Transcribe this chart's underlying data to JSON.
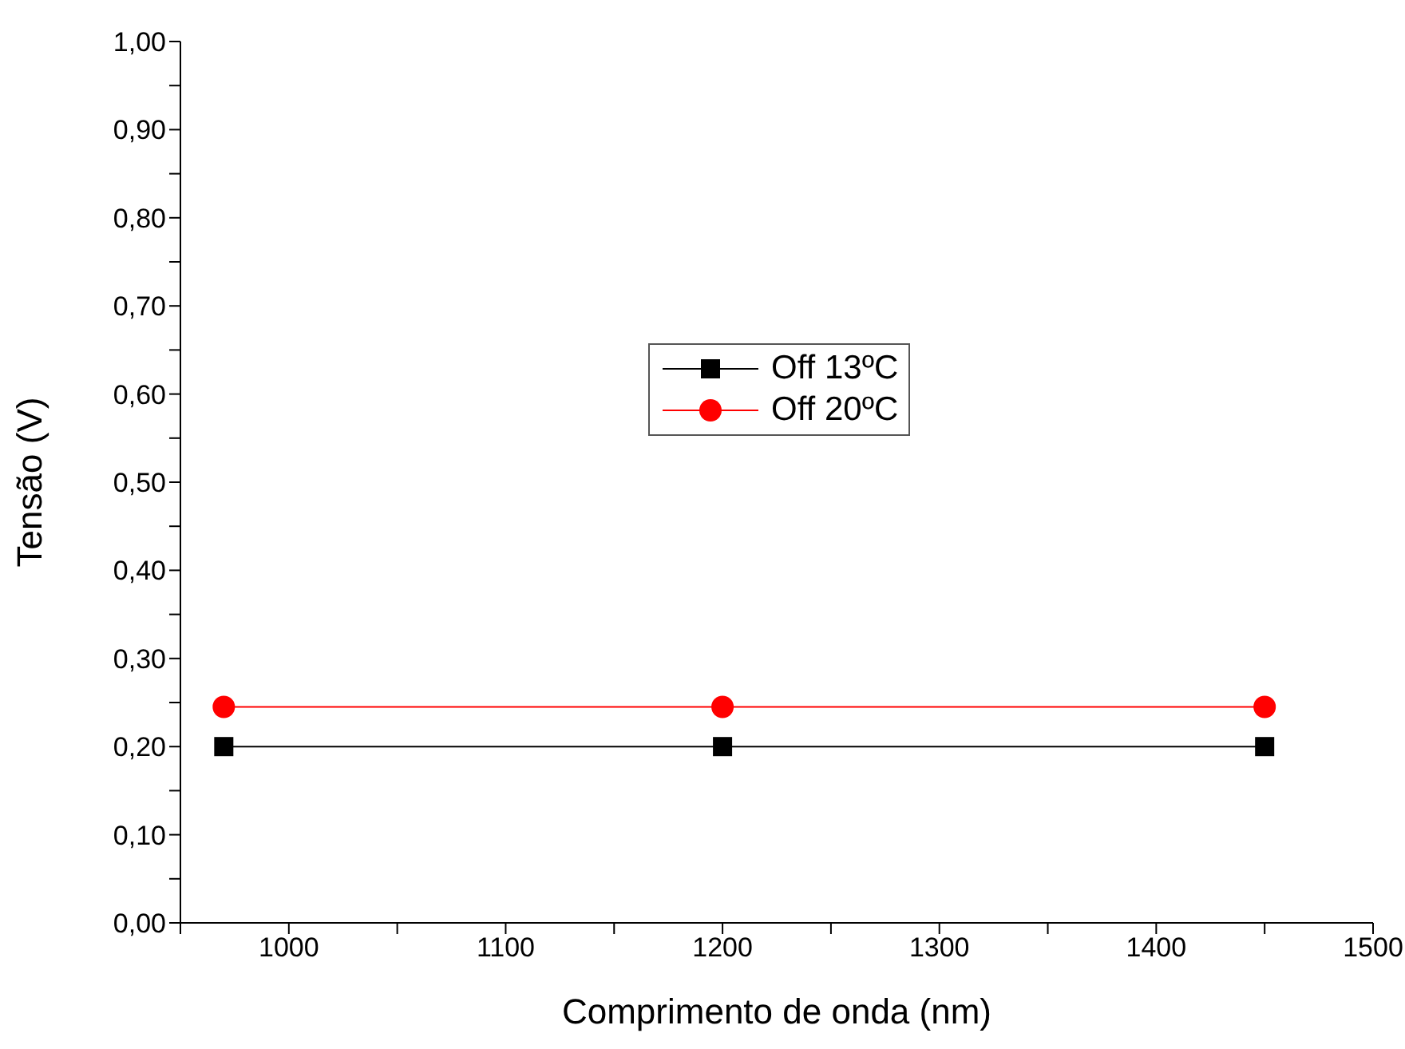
{
  "chart_data": {
    "type": "line",
    "xlabel": "Comprimento de onda (nm)",
    "ylabel": "Tensão (V)",
    "x": [
      970,
      1200,
      1450
    ],
    "series": [
      {
        "name": "Off 13ºC",
        "color": "#000000",
        "marker": "square",
        "values": [
          0.2,
          0.2,
          0.2
        ]
      },
      {
        "name": "Off 20ºC",
        "color": "#ff0000",
        "marker": "circle",
        "values": [
          0.245,
          0.245,
          0.245
        ]
      }
    ],
    "xlim": [
      950,
      1500
    ],
    "xticks": [
      {
        "value": 950,
        "label": null
      },
      1000,
      {
        "value": 1050,
        "label": null
      },
      1100,
      {
        "value": 1150,
        "label": null
      },
      1200,
      {
        "value": 1250,
        "label": null
      },
      1300,
      {
        "value": 1350,
        "label": null
      },
      1400,
      {
        "value": 1450,
        "label": null
      },
      1500
    ],
    "ylim": [
      0,
      1
    ],
    "yticks": [
      {
        "value": 0,
        "label": "0,00"
      },
      {
        "value": 0.05,
        "label": null
      },
      {
        "value": 0.1,
        "label": "0,10"
      },
      {
        "value": 0.15,
        "label": null
      },
      {
        "value": 0.2,
        "label": "0,20"
      },
      {
        "value": 0.25,
        "label": null
      },
      {
        "value": 0.3,
        "label": "0,30"
      },
      {
        "value": 0.35,
        "label": null
      },
      {
        "value": 0.4,
        "label": "0,40"
      },
      {
        "value": 0.45,
        "label": null
      },
      {
        "value": 0.5,
        "label": "0,50"
      },
      {
        "value": 0.55,
        "label": null
      },
      {
        "value": 0.6,
        "label": "0,60"
      },
      {
        "value": 0.65,
        "label": null
      },
      {
        "value": 0.7,
        "label": "0,70"
      },
      {
        "value": 0.75,
        "label": null
      },
      {
        "value": 0.8,
        "label": "0,80"
      },
      {
        "value": 0.85,
        "label": null
      },
      {
        "value": 0.9,
        "label": "0,90"
      },
      {
        "value": 0.95,
        "label": null
      },
      {
        "value": 1,
        "label": "1,00"
      }
    ],
    "grid": false,
    "legend": "center",
    "line_style": "solid"
  }
}
